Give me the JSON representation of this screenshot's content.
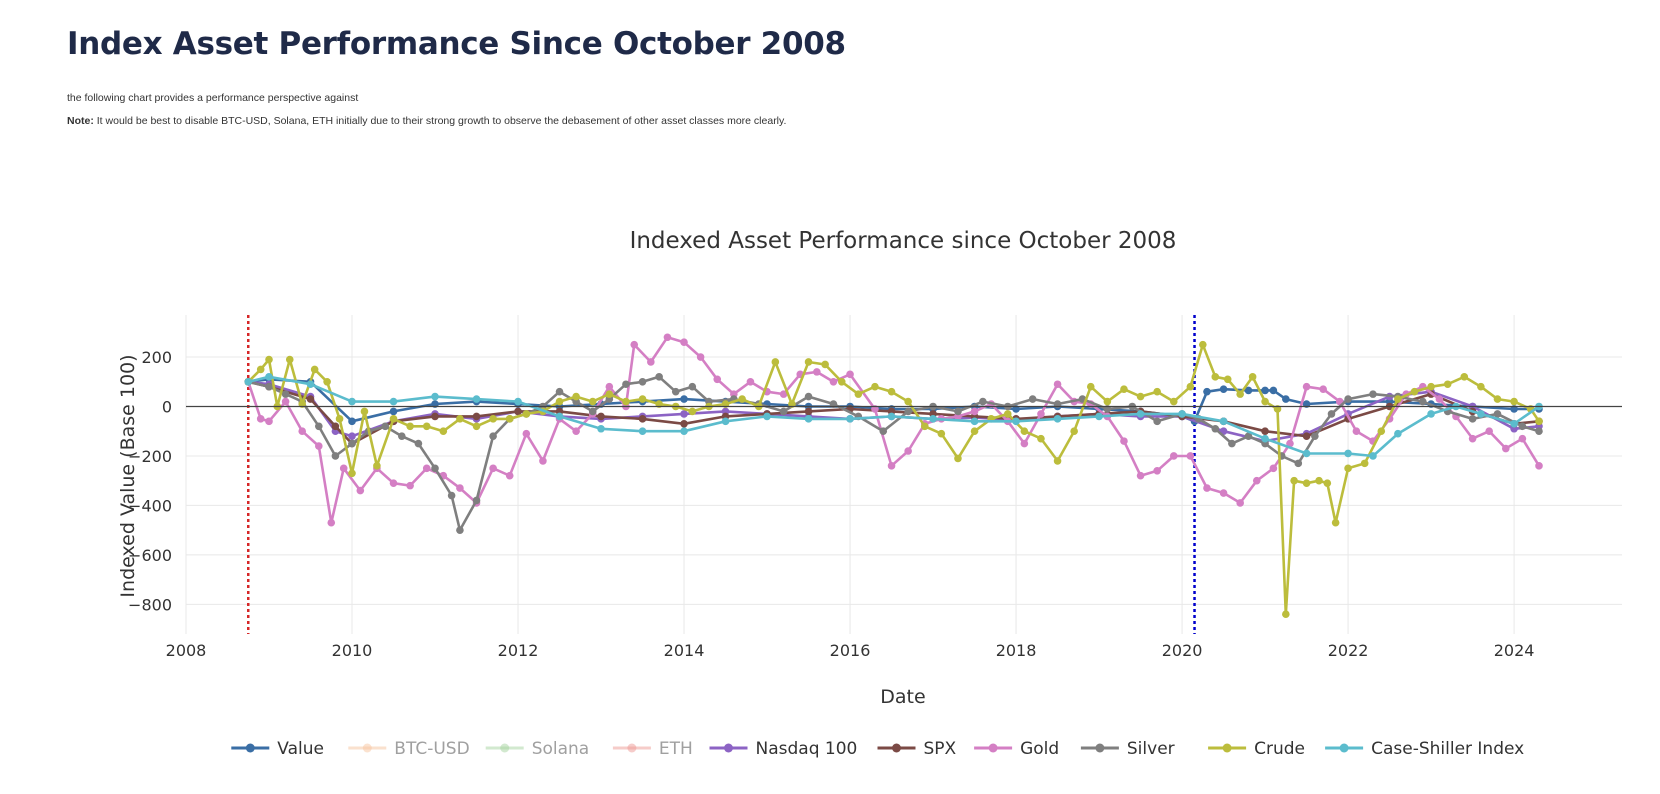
{
  "header": {
    "title": "Index Asset Performance Since October 2008",
    "intro": "the following chart provides a performance perspective against",
    "note_label": "Note:",
    "note_text": "It would be best to disable BTC-USD, Solana, ETH initially due to their strong growth to observe the debasement of other asset classes more clearly."
  },
  "chart_data": {
    "type": "line",
    "title": "Indexed Asset Performance since October 2008",
    "xlabel": "Date",
    "ylabel": "Indexed Value (Base 100)",
    "xlim": [
      2008.0,
      2025.3
    ],
    "ylim": [
      -920,
      370
    ],
    "x_ticks": [
      2008,
      2010,
      2012,
      2014,
      2016,
      2018,
      2020,
      2022,
      2024
    ],
    "x_tick_labels": [
      "2008",
      "2010",
      "2012",
      "2014",
      "2016",
      "2018",
      "2020",
      "2022",
      "2024"
    ],
    "y_ticks": [
      200,
      0,
      -200,
      -400,
      -600,
      -800
    ],
    "y_tick_labels": [
      "200",
      "0",
      "−200",
      "−400",
      "−600",
      "−800"
    ],
    "grid": true,
    "markers": true,
    "legend_position": "bottom",
    "vlines": [
      {
        "x": 2008.75,
        "color": "#d62728"
      },
      {
        "x": 2020.15,
        "color": "#0000cc"
      }
    ],
    "series": [
      {
        "name": "Value",
        "color": "#3a6ea5",
        "visible": true,
        "x": [
          2008.75,
          2009.0,
          2009.5,
          2010.0,
          2010.5,
          2011.0,
          2011.5,
          2012.0,
          2012.5,
          2013.0,
          2013.5,
          2014.0,
          2014.5,
          2015.0,
          2015.5,
          2016.0,
          2016.5,
          2017.0,
          2017.5,
          2018.0,
          2018.5,
          2019.0,
          2019.5,
          2020.0,
          2020.15,
          2020.3,
          2020.5,
          2020.8,
          2021.0,
          2021.1,
          2021.25,
          2021.5,
          2022.0,
          2022.5,
          2023.0,
          2023.5,
          2024.0,
          2024.3
        ],
        "y": [
          100,
          110,
          100,
          -60,
          -20,
          10,
          20,
          10,
          0,
          10,
          20,
          30,
          20,
          10,
          0,
          0,
          -10,
          -10,
          0,
          -10,
          0,
          -10,
          -20,
          -40,
          -60,
          60,
          70,
          65,
          65,
          65,
          30,
          10,
          20,
          20,
          10,
          0,
          -10,
          -10
        ]
      },
      {
        "name": "BTC-USD",
        "color": "#f7c59f",
        "visible": false,
        "x": [],
        "y": []
      },
      {
        "name": "Solana",
        "color": "#a6d4a0",
        "visible": false,
        "x": [],
        "y": []
      },
      {
        "name": "ETH",
        "color": "#ee9a95",
        "visible": false,
        "x": [],
        "y": []
      },
      {
        "name": "Nasdaq 100",
        "color": "#8c63c4",
        "visible": true,
        "x": [
          2008.75,
          2009.0,
          2009.5,
          2009.8,
          2010.0,
          2010.5,
          2011.0,
          2011.5,
          2012.0,
          2012.5,
          2013.0,
          2013.5,
          2014.0,
          2014.5,
          2015.0,
          2015.5,
          2016.0,
          2016.5,
          2017.0,
          2017.5,
          2018.0,
          2018.5,
          2019.0,
          2019.5,
          2020.0,
          2020.5,
          2021.0,
          2021.5,
          2022.0,
          2022.5,
          2023.0,
          2023.5,
          2024.0,
          2024.3
        ],
        "y": [
          100,
          90,
          40,
          -100,
          -120,
          -60,
          -30,
          -50,
          -20,
          -40,
          -50,
          -40,
          -30,
          -20,
          -30,
          -40,
          -50,
          -40,
          -50,
          -45,
          -55,
          -40,
          -30,
          -40,
          -40,
          -100,
          -140,
          -110,
          -30,
          40,
          60,
          0,
          -90,
          -80
        ]
      },
      {
        "name": "SPX",
        "color": "#7b4a45",
        "visible": true,
        "x": [
          2008.75,
          2009.0,
          2009.5,
          2009.8,
          2010.0,
          2010.5,
          2011.0,
          2011.5,
          2012.0,
          2012.5,
          2013.0,
          2013.5,
          2014.0,
          2014.5,
          2015.0,
          2015.5,
          2016.0,
          2016.5,
          2017.0,
          2017.5,
          2018.0,
          2018.5,
          2019.0,
          2019.5,
          2020.0,
          2020.5,
          2021.0,
          2021.5,
          2022.0,
          2022.5,
          2023.0,
          2023.5,
          2024.0,
          2024.3
        ],
        "y": [
          100,
          80,
          30,
          -80,
          -150,
          -60,
          -40,
          -40,
          -20,
          -20,
          -40,
          -50,
          -70,
          -40,
          -30,
          -20,
          -10,
          -20,
          -30,
          -40,
          -50,
          -40,
          -30,
          -20,
          -40,
          -60,
          -100,
          -120,
          -50,
          0,
          50,
          -20,
          -70,
          -60
        ]
      },
      {
        "name": "Gold",
        "color": "#d47fc4",
        "visible": true,
        "x": [
          2008.75,
          2008.9,
          2009.0,
          2009.2,
          2009.4,
          2009.6,
          2009.75,
          2009.9,
          2010.1,
          2010.3,
          2010.5,
          2010.7,
          2010.9,
          2011.1,
          2011.3,
          2011.5,
          2011.7,
          2011.9,
          2012.1,
          2012.3,
          2012.5,
          2012.7,
          2012.9,
          2013.1,
          2013.3,
          2013.4,
          2013.6,
          2013.8,
          2014.0,
          2014.2,
          2014.4,
          2014.6,
          2014.8,
          2015.0,
          2015.2,
          2015.4,
          2015.6,
          2015.8,
          2016.0,
          2016.3,
          2016.5,
          2016.7,
          2016.9,
          2017.1,
          2017.3,
          2017.5,
          2017.7,
          2017.9,
          2018.1,
          2018.3,
          2018.5,
          2018.7,
          2018.9,
          2019.1,
          2019.3,
          2019.5,
          2019.7,
          2019.9,
          2020.1,
          2020.3,
          2020.5,
          2020.7,
          2020.9,
          2021.1,
          2021.3,
          2021.5,
          2021.7,
          2021.9,
          2022.1,
          2022.3,
          2022.5,
          2022.7,
          2022.9,
          2023.1,
          2023.3,
          2023.5,
          2023.7,
          2023.9,
          2024.1,
          2024.3
        ],
        "y": [
          100,
          -50,
          -60,
          20,
          -100,
          -160,
          -470,
          -250,
          -340,
          -250,
          -310,
          -320,
          -250,
          -280,
          -330,
          -390,
          -250,
          -280,
          -110,
          -220,
          -50,
          -100,
          -30,
          80,
          0,
          250,
          180,
          280,
          260,
          200,
          110,
          50,
          100,
          60,
          50,
          130,
          140,
          100,
          130,
          -10,
          -240,
          -180,
          -70,
          -50,
          -40,
          -20,
          10,
          -60,
          -150,
          -30,
          90,
          20,
          10,
          -40,
          -140,
          -280,
          -260,
          -200,
          -200,
          -330,
          -350,
          -390,
          -300,
          -250,
          -150,
          80,
          70,
          20,
          -100,
          -140,
          -50,
          50,
          80,
          30,
          -40,
          -130,
          -100,
          -170,
          -130,
          -240
        ]
      },
      {
        "name": "Silver",
        "color": "#7f7f7f",
        "visible": true,
        "x": [
          2008.75,
          2009.0,
          2009.2,
          2009.4,
          2009.6,
          2009.8,
          2010.0,
          2010.2,
          2010.4,
          2010.6,
          2010.8,
          2011.0,
          2011.2,
          2011.3,
          2011.5,
          2011.7,
          2011.9,
          2012.1,
          2012.3,
          2012.5,
          2012.7,
          2012.9,
          2013.1,
          2013.3,
          2013.5,
          2013.7,
          2013.9,
          2014.1,
          2014.3,
          2014.6,
          2014.9,
          2015.2,
          2015.5,
          2015.8,
          2016.1,
          2016.4,
          2016.7,
          2017.0,
          2017.3,
          2017.6,
          2017.9,
          2018.2,
          2018.5,
          2018.8,
          2019.1,
          2019.4,
          2019.7,
          2020.0,
          2020.2,
          2020.4,
          2020.6,
          2020.8,
          2021.0,
          2021.2,
          2021.4,
          2021.6,
          2021.8,
          2022.0,
          2022.3,
          2022.6,
          2022.9,
          2023.2,
          2023.5,
          2023.8,
          2024.1,
          2024.3
        ],
        "y": [
          100,
          80,
          50,
          20,
          -80,
          -200,
          -150,
          -100,
          -80,
          -120,
          -150,
          -250,
          -360,
          -500,
          -380,
          -120,
          -50,
          -30,
          0,
          60,
          20,
          -20,
          30,
          90,
          100,
          120,
          60,
          80,
          20,
          30,
          10,
          -20,
          40,
          10,
          -40,
          -100,
          -20,
          0,
          -20,
          20,
          0,
          30,
          10,
          30,
          -10,
          0,
          -60,
          -30,
          -50,
          -90,
          -150,
          -120,
          -150,
          -200,
          -230,
          -120,
          -30,
          30,
          50,
          40,
          20,
          -20,
          -50,
          -30,
          -80,
          -100
        ]
      },
      {
        "name": "Crude",
        "color": "#bcbd3c",
        "visible": true,
        "x": [
          2008.75,
          2008.9,
          2009.0,
          2009.1,
          2009.25,
          2009.4,
          2009.55,
          2009.7,
          2009.85,
          2010.0,
          2010.15,
          2010.3,
          2010.5,
          2010.7,
          2010.9,
          2011.1,
          2011.3,
          2011.5,
          2011.7,
          2011.9,
          2012.1,
          2012.3,
          2012.5,
          2012.7,
          2012.9,
          2013.1,
          2013.3,
          2013.5,
          2013.7,
          2013.9,
          2014.1,
          2014.3,
          2014.5,
          2014.7,
          2014.9,
          2015.1,
          2015.3,
          2015.5,
          2015.7,
          2015.9,
          2016.1,
          2016.3,
          2016.5,
          2016.7,
          2016.9,
          2017.1,
          2017.3,
          2017.5,
          2017.7,
          2017.9,
          2018.1,
          2018.3,
          2018.5,
          2018.7,
          2018.9,
          2019.1,
          2019.3,
          2019.5,
          2019.7,
          2019.9,
          2020.1,
          2020.25,
          2020.4,
          2020.55,
          2020.7,
          2020.85,
          2021.0,
          2021.15,
          2021.25,
          2021.35,
          2021.5,
          2021.65,
          2021.75,
          2021.85,
          2022.0,
          2022.2,
          2022.4,
          2022.6,
          2022.8,
          2023.0,
          2023.2,
          2023.4,
          2023.6,
          2023.8,
          2024.0,
          2024.2,
          2024.3
        ],
        "y": [
          100,
          150,
          190,
          0,
          190,
          10,
          150,
          100,
          -50,
          -270,
          -20,
          -240,
          -50,
          -80,
          -80,
          -100,
          -50,
          -80,
          -50,
          -50,
          -30,
          -20,
          20,
          40,
          20,
          50,
          20,
          30,
          10,
          0,
          -20,
          0,
          10,
          30,
          0,
          180,
          10,
          180,
          170,
          100,
          50,
          80,
          60,
          20,
          -80,
          -110,
          -210,
          -100,
          -50,
          -30,
          -100,
          -130,
          -220,
          -100,
          80,
          20,
          70,
          40,
          60,
          20,
          80,
          250,
          120,
          110,
          50,
          120,
          20,
          -10,
          -840,
          -300,
          -310,
          -300,
          -310,
          -470,
          -250,
          -230,
          -100,
          30,
          60,
          80,
          90,
          120,
          80,
          30,
          20,
          -10,
          -60
        ]
      },
      {
        "name": "Case-Shiller Index",
        "color": "#5bbccd",
        "visible": true,
        "x": [
          2008.75,
          2009.0,
          2009.5,
          2010.0,
          2010.5,
          2011.0,
          2011.5,
          2012.0,
          2012.5,
          2013.0,
          2013.5,
          2014.0,
          2014.5,
          2015.0,
          2015.5,
          2016.0,
          2016.5,
          2017.0,
          2017.5,
          2018.0,
          2018.5,
          2019.0,
          2019.5,
          2020.0,
          2020.5,
          2021.0,
          2021.5,
          2022.0,
          2022.3,
          2022.6,
          2023.0,
          2023.3,
          2023.6,
          2024.0,
          2024.3
        ],
        "y": [
          100,
          120,
          90,
          20,
          20,
          40,
          30,
          20,
          -40,
          -90,
          -100,
          -100,
          -60,
          -40,
          -50,
          -50,
          -40,
          -50,
          -60,
          -60,
          -50,
          -40,
          -30,
          -30,
          -60,
          -130,
          -190,
          -190,
          -200,
          -110,
          -30,
          0,
          -30,
          -70,
          0
        ]
      }
    ]
  }
}
